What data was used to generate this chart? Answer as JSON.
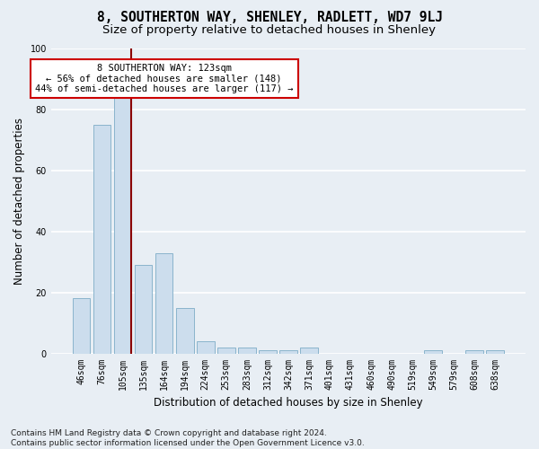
{
  "title": "8, SOUTHERTON WAY, SHENLEY, RADLETT, WD7 9LJ",
  "subtitle": "Size of property relative to detached houses in Shenley",
  "xlabel": "Distribution of detached houses by size in Shenley",
  "ylabel": "Number of detached properties",
  "bar_categories": [
    "46sqm",
    "76sqm",
    "105sqm",
    "135sqm",
    "164sqm",
    "194sqm",
    "224sqm",
    "253sqm",
    "283sqm",
    "312sqm",
    "342sqm",
    "371sqm",
    "401sqm",
    "431sqm",
    "460sqm",
    "490sqm",
    "519sqm",
    "549sqm",
    "579sqm",
    "608sqm",
    "638sqm"
  ],
  "bar_values": [
    18,
    75,
    84,
    29,
    33,
    15,
    4,
    2,
    2,
    1,
    1,
    2,
    0,
    0,
    0,
    0,
    0,
    1,
    0,
    1,
    1
  ],
  "bar_color": "#ccdded",
  "bar_edgecolor": "#8ab4cc",
  "vline_color": "#8b0000",
  "annotation_text": "8 SOUTHERTON WAY: 123sqm\n← 56% of detached houses are smaller (148)\n44% of semi-detached houses are larger (117) →",
  "annotation_box_edgecolor": "#cc0000",
  "annotation_box_facecolor": "#ffffff",
  "ylim": [
    0,
    100
  ],
  "yticks": [
    0,
    20,
    40,
    60,
    80,
    100
  ],
  "footnote": "Contains HM Land Registry data © Crown copyright and database right 2024.\nContains public sector information licensed under the Open Government Licence v3.0.",
  "bg_color": "#e8eef4",
  "title_fontsize": 10.5,
  "subtitle_fontsize": 9.5,
  "xlabel_fontsize": 8.5,
  "ylabel_fontsize": 8.5,
  "tick_fontsize": 7,
  "annotation_fontsize": 7.5,
  "footnote_fontsize": 6.5
}
